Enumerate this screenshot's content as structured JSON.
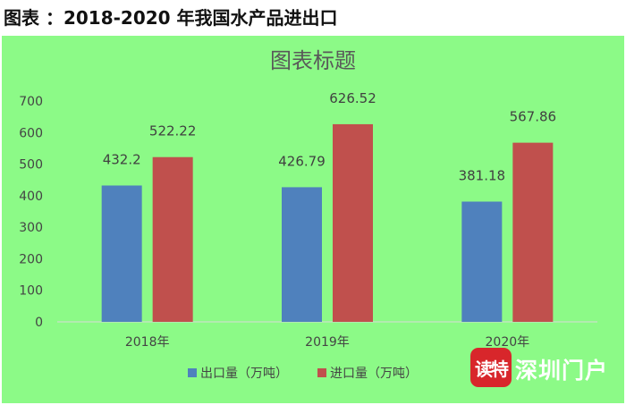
{
  "heading": "图表 ：2018-2020 年我国水产品进出口",
  "watermark": {
    "badge": "读特",
    "text": "深圳门户"
  },
  "colors": {
    "background": "#8cfa87",
    "export": "#4f81bd",
    "import": "#c0504d",
    "axis_text": "#444444",
    "title_text": "#595959"
  },
  "chart_data": {
    "type": "bar",
    "title": "图表标题",
    "categories": [
      "2018年",
      "2019年",
      "2020年"
    ],
    "series": [
      {
        "name": "出口量（万吨）",
        "values": [
          432.2,
          426.79,
          381.18
        ],
        "labels": [
          "432.2",
          "426.79",
          "381.18"
        ],
        "color": "#4f81bd"
      },
      {
        "name": "进口量（万吨）",
        "values": [
          522.22,
          626.52,
          567.86
        ],
        "labels": [
          "522.22",
          "626.52",
          "567.86"
        ],
        "color": "#c0504d"
      }
    ],
    "yticks": [
      "0",
      "100",
      "200",
      "300",
      "400",
      "500",
      "600",
      "700"
    ],
    "ylim": [
      0,
      700
    ],
    "grid": false,
    "legend": "bottom"
  }
}
